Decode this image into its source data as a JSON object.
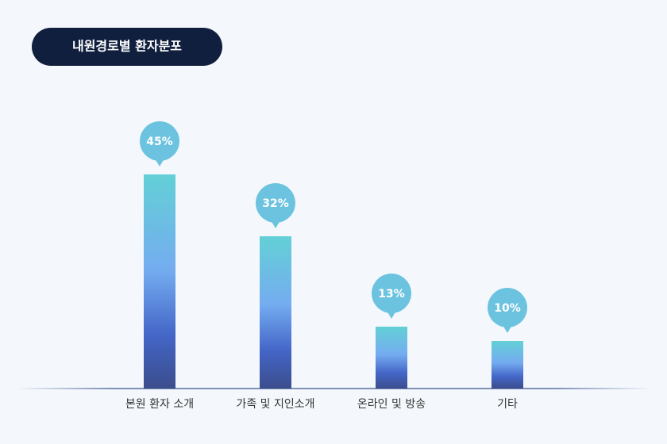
{
  "chart_data": {
    "type": "bar",
    "title": "내원경로별 환자분포",
    "categories": [
      "본원 환자 소개",
      "가족 및 지인소개",
      "온라인 및 방송",
      "기타"
    ],
    "values": [
      45,
      32,
      13,
      10
    ],
    "value_labels": [
      "45%",
      "32%",
      "13%",
      "10%"
    ]
  }
}
